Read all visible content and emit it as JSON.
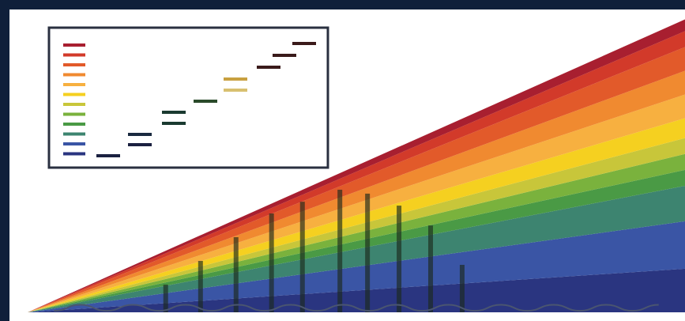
{
  "chart_data": [
    {
      "type": "area",
      "stacked": true,
      "xlim": [
        0,
        100
      ],
      "ylim": [
        0,
        100
      ],
      "x": [
        0,
        100
      ],
      "series": [
        {
          "color": "#2a3580",
          "values": [
            0,
            14.5
          ]
        },
        {
          "color": "#3a55a5",
          "values": [
            0,
            15.8
          ]
        },
        {
          "color": "#3d8470",
          "values": [
            0,
            11.8
          ]
        },
        {
          "color": "#4a9a45",
          "values": [
            0,
            5.3
          ]
        },
        {
          "color": "#7ab23d",
          "values": [
            0,
            5.3
          ]
        },
        {
          "color": "#c8c63a",
          "values": [
            0,
            5.3
          ]
        },
        {
          "color": "#f5d020",
          "values": [
            0,
            6.6
          ]
        },
        {
          "color": "#f7b040",
          "values": [
            0,
            7.9
          ]
        },
        {
          "color": "#f08a30",
          "values": [
            0,
            7.9
          ]
        },
        {
          "color": "#e25a2a",
          "values": [
            0,
            7.9
          ]
        },
        {
          "color": "#d23a2a",
          "values": [
            0,
            5.3
          ]
        },
        {
          "color": "#a81f30",
          "values": [
            0,
            3.9
          ]
        }
      ]
    },
    {
      "type": "bar",
      "xlim": [
        0,
        100
      ],
      "ylim": [
        0,
        100
      ],
      "color": "#1c2a1c",
      "x": [
        21,
        26.3,
        31.7,
        37.1,
        41.8,
        47.5,
        51.7,
        56.5,
        61.3,
        66.1
      ],
      "values": [
        9.2,
        17.1,
        25,
        32.9,
        36.8,
        40.8,
        39.5,
        35.5,
        28.9,
        15.8
      ]
    },
    {
      "type": "line",
      "xlim": [
        0,
        100
      ],
      "ylim": [
        0,
        100
      ],
      "color": "#4a5570",
      "x": [
        4,
        8,
        12,
        16,
        20,
        24,
        28,
        32,
        36,
        40,
        44,
        48,
        52,
        56,
        60,
        64,
        68,
        72,
        76,
        80,
        84,
        88,
        92,
        96
      ],
      "values": [
        0.5,
        2.5,
        0.5,
        2.5,
        0.5,
        2.5,
        0.5,
        2.5,
        0.5,
        2.5,
        0.5,
        2.5,
        0.5,
        2.5,
        0.5,
        2.5,
        0.5,
        2.5,
        0.5,
        2.5,
        0.5,
        2.5,
        0.5,
        2.5
      ]
    }
  ]
}
